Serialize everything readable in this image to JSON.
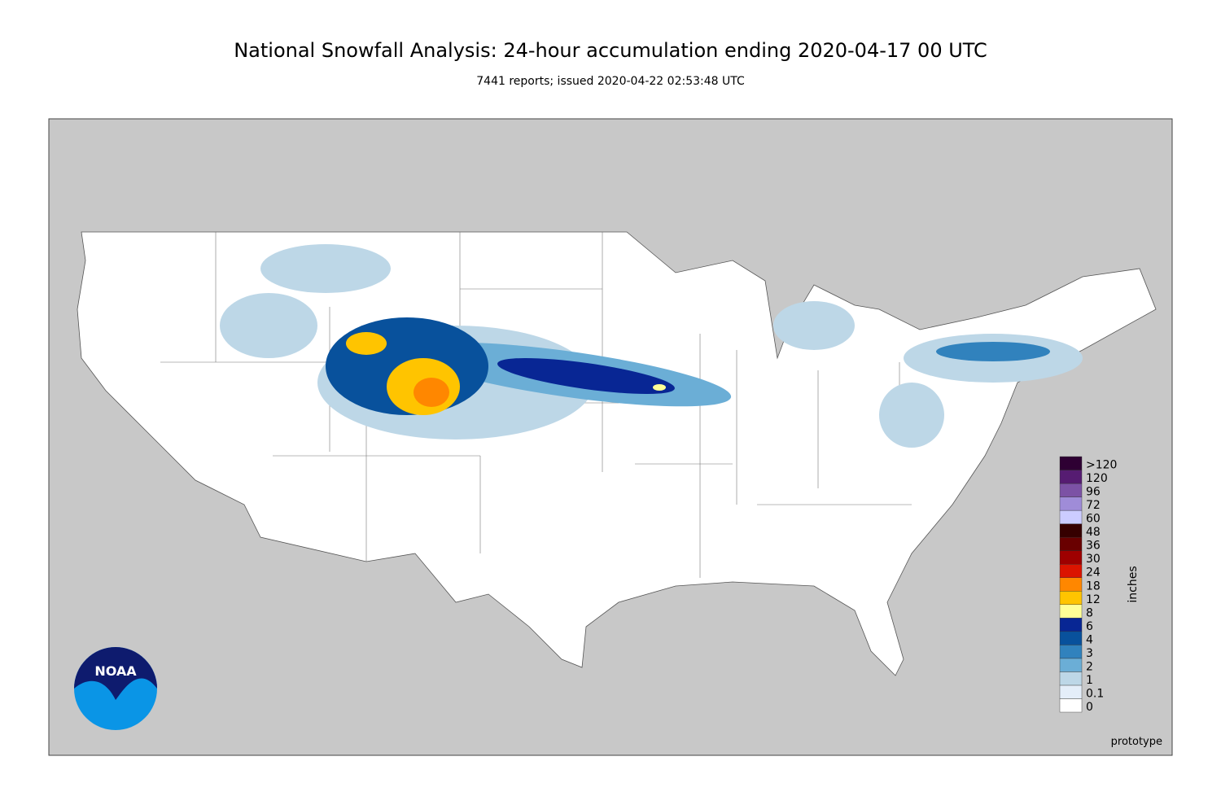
{
  "title": "National Snowfall Analysis: 24-hour accumulation ending 2020-04-17 00 UTC",
  "subtitle": "7441 reports; issued 2020-04-22 02:53:48 UTC",
  "logo": "NOAA",
  "note": "prototype",
  "colorbar": {
    "label": "inches",
    "levels": [
      {
        "label": 0,
        "color": "#ffffff"
      },
      {
        "label": 0.1,
        "color": "#e4eef9"
      },
      {
        "label": 1,
        "color": "#bdd7e7"
      },
      {
        "label": 2,
        "color": "#6baed6"
      },
      {
        "label": 3,
        "color": "#3182bd"
      },
      {
        "label": 4,
        "color": "#08519c"
      },
      {
        "label": 6,
        "color": "#082694"
      },
      {
        "label": 8,
        "color": "#ffff96"
      },
      {
        "label": 12,
        "color": "#ffc400"
      },
      {
        "label": 18,
        "color": "#ff8700"
      },
      {
        "label": 24,
        "color": "#db1400"
      },
      {
        "label": 30,
        "color": "#9e0000"
      },
      {
        "label": 36,
        "color": "#690000"
      },
      {
        "label": 48,
        "color": "#360000"
      },
      {
        "label": 60,
        "color": "#ccccff"
      },
      {
        "label": 72,
        "color": "#9f8cd8"
      },
      {
        "label": 96,
        "color": "#7c52a5"
      },
      {
        "label": 120,
        "color": "#561c72"
      },
      {
        "label": ">120",
        "color": "#2e0033"
      }
    ]
  }
}
